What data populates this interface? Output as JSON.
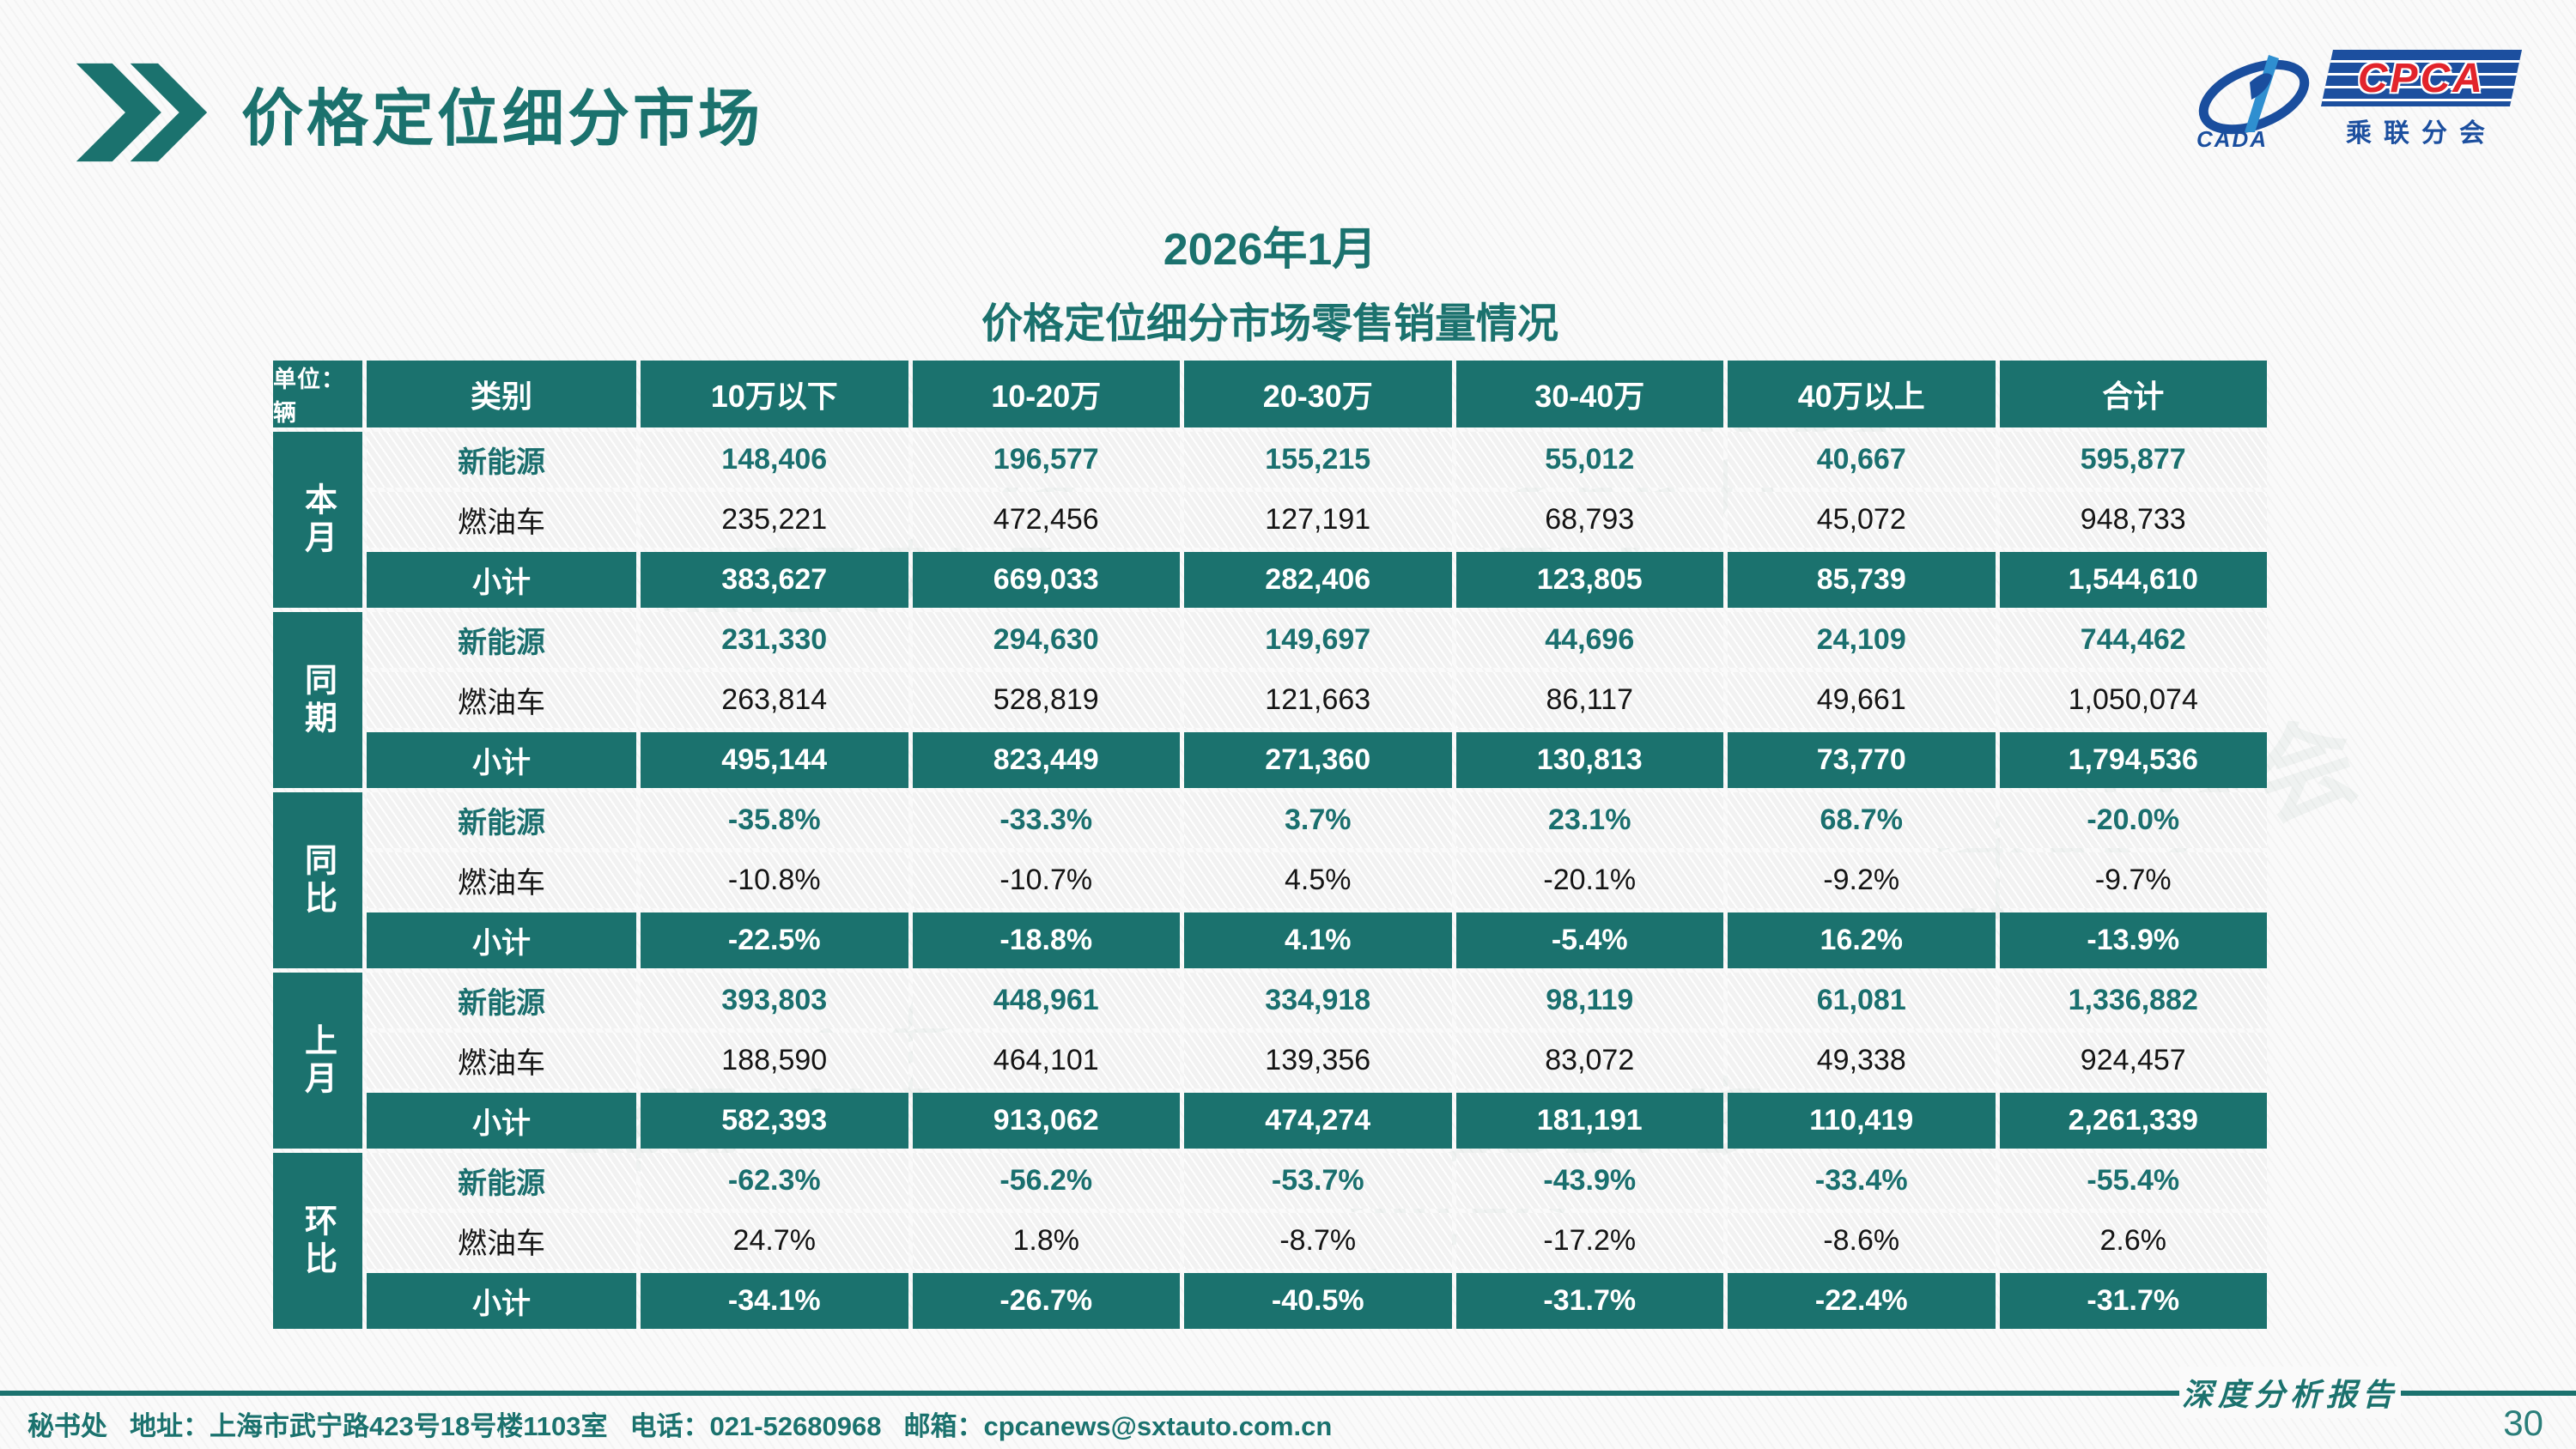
{
  "page": {
    "title": "价格定位细分市场",
    "page_number": "30",
    "report_type": "深度分析报告",
    "watermark": "乘联分会"
  },
  "logo": {
    "cpca": "CPCA",
    "cada": "CADA",
    "sub": "乘联分会"
  },
  "subtitle": {
    "line1": "2026年1月",
    "line2": "价格定位细分市场零售销量情况"
  },
  "colors": {
    "teal": "#1b726e",
    "nev_text": "#1a6f6e",
    "logo_blue": "#1c4f9f",
    "logo_red": "#e2242b"
  },
  "footer": {
    "org": "秘书处",
    "address": "地址：上海市武宁路423号18号楼1103室",
    "phone": "电话：021-52680968",
    "email": "邮箱：cpcanews@sxtauto.com.cn"
  },
  "table": {
    "unit_label": "单位：辆",
    "columns": [
      "类别",
      "10万以下",
      "10-20万",
      "20-30万",
      "30-40万",
      "40万以上",
      "合计"
    ],
    "groups": [
      {
        "label": "本月",
        "rows": [
          {
            "type": "nev",
            "label": "新能源",
            "values": [
              "148,406",
              "196,577",
              "155,215",
              "55,012",
              "40,667",
              "595,877"
            ]
          },
          {
            "type": "ice",
            "label": "燃油车",
            "values": [
              "235,221",
              "472,456",
              "127,191",
              "68,793",
              "45,072",
              "948,733"
            ]
          },
          {
            "type": "subtotal",
            "label": "小计",
            "values": [
              "383,627",
              "669,033",
              "282,406",
              "123,805",
              "85,739",
              "1,544,610"
            ]
          }
        ]
      },
      {
        "label": "同期",
        "rows": [
          {
            "type": "nev",
            "label": "新能源",
            "values": [
              "231,330",
              "294,630",
              "149,697",
              "44,696",
              "24,109",
              "744,462"
            ]
          },
          {
            "type": "ice",
            "label": "燃油车",
            "values": [
              "263,814",
              "528,819",
              "121,663",
              "86,117",
              "49,661",
              "1,050,074"
            ]
          },
          {
            "type": "subtotal",
            "label": "小计",
            "values": [
              "495,144",
              "823,449",
              "271,360",
              "130,813",
              "73,770",
              "1,794,536"
            ]
          }
        ]
      },
      {
        "label": "同比",
        "rows": [
          {
            "type": "nev",
            "label": "新能源",
            "values": [
              "-35.8%",
              "-33.3%",
              "3.7%",
              "23.1%",
              "68.7%",
              "-20.0%"
            ]
          },
          {
            "type": "ice",
            "label": "燃油车",
            "values": [
              "-10.8%",
              "-10.7%",
              "4.5%",
              "-20.1%",
              "-9.2%",
              "-9.7%"
            ]
          },
          {
            "type": "subtotal",
            "label": "小计",
            "values": [
              "-22.5%",
              "-18.8%",
              "4.1%",
              "-5.4%",
              "16.2%",
              "-13.9%"
            ]
          }
        ]
      },
      {
        "label": "上月",
        "rows": [
          {
            "type": "nev",
            "label": "新能源",
            "values": [
              "393,803",
              "448,961",
              "334,918",
              "98,119",
              "61,081",
              "1,336,882"
            ]
          },
          {
            "type": "ice",
            "label": "燃油车",
            "values": [
              "188,590",
              "464,101",
              "139,356",
              "83,072",
              "49,338",
              "924,457"
            ]
          },
          {
            "type": "subtotal",
            "label": "小计",
            "values": [
              "582,393",
              "913,062",
              "474,274",
              "181,191",
              "110,419",
              "2,261,339"
            ]
          }
        ]
      },
      {
        "label": "环比",
        "rows": [
          {
            "type": "nev",
            "label": "新能源",
            "values": [
              "-62.3%",
              "-56.2%",
              "-53.7%",
              "-43.9%",
              "-33.4%",
              "-55.4%"
            ]
          },
          {
            "type": "ice",
            "label": "燃油车",
            "values": [
              "24.7%",
              "1.8%",
              "-8.7%",
              "-17.2%",
              "-8.6%",
              "2.6%"
            ]
          },
          {
            "type": "subtotal",
            "label": "小计",
            "values": [
              "-34.1%",
              "-26.7%",
              "-40.5%",
              "-31.7%",
              "-22.4%",
              "-31.7%"
            ]
          }
        ]
      }
    ]
  }
}
